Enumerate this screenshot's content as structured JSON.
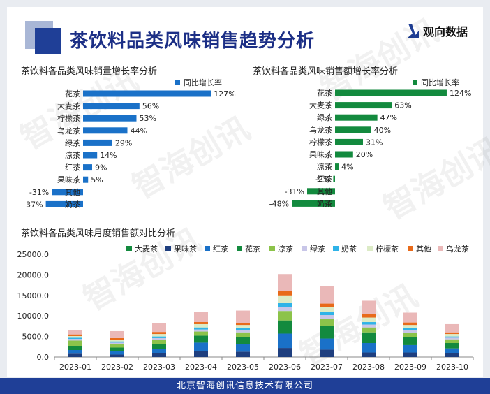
{
  "page": {
    "title": "茶饮料品类风味销售趋势分析",
    "brand": "观向数据",
    "footer": "——北京智海创讯信息技术有限公司——",
    "watermark": "智海创讯"
  },
  "colors": {
    "primary": "#1f3f97",
    "blue_bar": "#1a71c8",
    "green_bar": "#138a3e"
  },
  "chart_data": [
    {
      "type": "bar",
      "orientation": "horizontal",
      "title": "茶饮料各品类风味销量增长率分析",
      "legend": "同比增长率",
      "unit": "%",
      "color": "#1a71c8",
      "categories": [
        "花茶",
        "大麦茶",
        "柠檬茶",
        "乌龙茶",
        "绿茶",
        "凉茶",
        "红茶",
        "果味茶",
        "其他",
        "奶茶"
      ],
      "values": [
        127,
        56,
        53,
        44,
        29,
        14,
        9,
        5,
        -31,
        -37
      ]
    },
    {
      "type": "bar",
      "orientation": "horizontal",
      "title": "茶饮料各品类风味销售额增长率分析",
      "legend": "同比增长率",
      "unit": "%",
      "color": "#138a3e",
      "categories": [
        "花茶",
        "大麦茶",
        "绿茶",
        "乌龙茶",
        "柠檬茶",
        "果味茶",
        "凉茶",
        "红茶",
        "其他",
        "奶茶"
      ],
      "values": [
        124,
        63,
        47,
        40,
        31,
        20,
        4,
        -2,
        -31,
        -48
      ]
    },
    {
      "type": "bar",
      "stacked": true,
      "title": "茶饮料各品类风味月度销售额对比分析",
      "categories": [
        "2023-01",
        "2023-02",
        "2023-03",
        "2023-04",
        "2023-05",
        "2023-06",
        "2023-07",
        "2023-08",
        "2023-09",
        "2023-10"
      ],
      "y_ticks": [
        "0.0",
        "5000.0",
        "10000.0",
        "15000.0",
        "20000.0",
        "25000.0"
      ],
      "ylim": [
        0,
        25000
      ],
      "grid": false,
      "legend_position": "top",
      "series": [
        {
          "name": "大麦茶",
          "color": "#138a3e",
          "values": [
            0,
            0,
            0,
            0,
            0,
            0,
            0,
            0,
            0,
            0
          ]
        },
        {
          "name": "果味茶",
          "color": "#1f3f7f",
          "values": [
            800,
            600,
            900,
            1500,
            1300,
            2200,
            1800,
            1100,
            1100,
            900
          ]
        },
        {
          "name": "红茶",
          "color": "#1a71c8",
          "values": [
            900,
            800,
            1100,
            2000,
            1800,
            3500,
            2700,
            2300,
            1800,
            1200
          ]
        },
        {
          "name": "花茶",
          "color": "#138a3e",
          "values": [
            1000,
            900,
            1200,
            1700,
            1700,
            3200,
            3000,
            2600,
            1900,
            1300
          ]
        },
        {
          "name": "凉茶",
          "color": "#8cc34a",
          "values": [
            1300,
            900,
            1000,
            1000,
            1200,
            2300,
            1800,
            1200,
            1100,
            900
          ]
        },
        {
          "name": "绿茶",
          "color": "#c8c6e8",
          "values": [
            400,
            300,
            400,
            500,
            500,
            1000,
            900,
            700,
            600,
            400
          ]
        },
        {
          "name": "奶茶",
          "color": "#2fb3e8",
          "values": [
            300,
            300,
            400,
            500,
            500,
            900,
            700,
            600,
            500,
            300
          ]
        },
        {
          "name": "柠檬茶",
          "color": "#dcebc6",
          "values": [
            400,
            400,
            600,
            800,
            800,
            1900,
            1300,
            1100,
            800,
            600
          ]
        },
        {
          "name": "其他",
          "color": "#e86a1a",
          "values": [
            400,
            400,
            500,
            500,
            500,
            1000,
            800,
            800,
            600,
            400
          ]
        },
        {
          "name": "乌龙茶",
          "color": "#eab8b8",
          "values": [
            1000,
            1700,
            2200,
            2400,
            3000,
            4200,
            4300,
            3300,
            2400,
            2000
          ]
        }
      ]
    }
  ]
}
